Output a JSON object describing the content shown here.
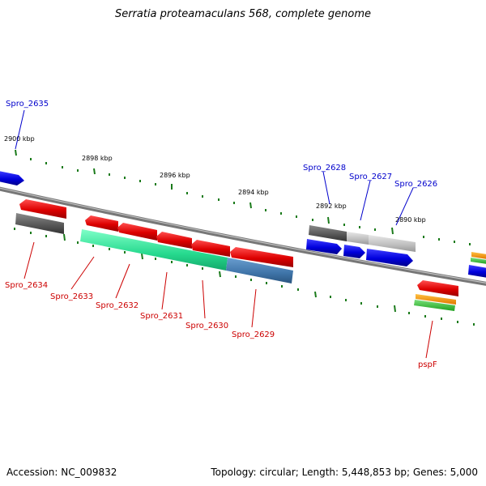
{
  "title": "Serratia proteamaculans 568, complete genome",
  "footer": {
    "accession": "Accession: NC_009832",
    "summary": "Topology: circular; Length: 5,448,853 bp; Genes: 5,000"
  },
  "colors": {
    "plus_strand_label": "#0000cc",
    "minus_strand_label": "#cc0000",
    "tick": "#1a7a1a",
    "backbone": "#6e6e6e"
  },
  "kbp_ticks": [
    "2900 kbp",
    "2898 kbp",
    "2896 kbp",
    "2894 kbp",
    "2892 kbp",
    "2890 kbp"
  ],
  "top_labels": [
    "Spro_2635",
    "Spro_2628",
    "Spro_2627",
    "Spro_2626"
  ],
  "bottom_labels": [
    "Spro_2634",
    "Spro_2633",
    "Spro_2632",
    "Spro_2631",
    "Spro_2630",
    "Spro_2629",
    "pspF"
  ]
}
